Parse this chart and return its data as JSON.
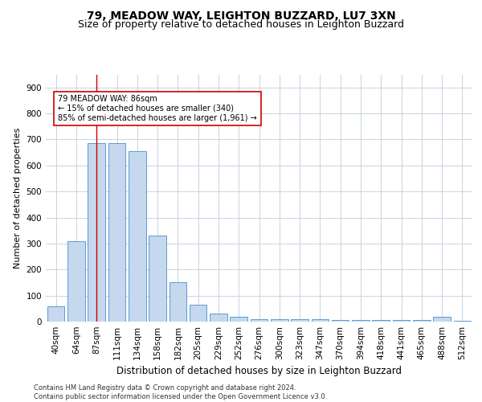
{
  "title1": "79, MEADOW WAY, LEIGHTON BUZZARD, LU7 3XN",
  "title2": "Size of property relative to detached houses in Leighton Buzzard",
  "xlabel": "Distribution of detached houses by size in Leighton Buzzard",
  "ylabel": "Number of detached properties",
  "categories": [
    "40sqm",
    "64sqm",
    "87sqm",
    "111sqm",
    "134sqm",
    "158sqm",
    "182sqm",
    "205sqm",
    "229sqm",
    "252sqm",
    "276sqm",
    "300sqm",
    "323sqm",
    "347sqm",
    "370sqm",
    "394sqm",
    "418sqm",
    "441sqm",
    "465sqm",
    "488sqm",
    "512sqm"
  ],
  "values": [
    60,
    310,
    685,
    685,
    655,
    330,
    150,
    65,
    30,
    18,
    10,
    10,
    10,
    8,
    5,
    5,
    5,
    5,
    5,
    20,
    2
  ],
  "bar_color": "#c5d8ed",
  "bar_edge_color": "#5b9bd5",
  "vline_x": 2,
  "vline_color": "#cc0000",
  "annotation_text": "79 MEADOW WAY: 86sqm\n← 15% of detached houses are smaller (340)\n85% of semi-detached houses are larger (1,961) →",
  "annotation_box_color": "#ffffff",
  "annotation_box_edge": "#cc0000",
  "ylim": [
    0,
    950
  ],
  "yticks": [
    0,
    100,
    200,
    300,
    400,
    500,
    600,
    700,
    800,
    900
  ],
  "footer": "Contains HM Land Registry data © Crown copyright and database right 2024.\nContains public sector information licensed under the Open Government Licence v3.0.",
  "bg_color": "#ffffff",
  "grid_color": "#c8d4e0",
  "title1_fontsize": 10,
  "title2_fontsize": 9,
  "xlabel_fontsize": 8.5,
  "ylabel_fontsize": 8,
  "tick_fontsize": 7.5,
  "annotation_fontsize": 7,
  "footer_fontsize": 6
}
